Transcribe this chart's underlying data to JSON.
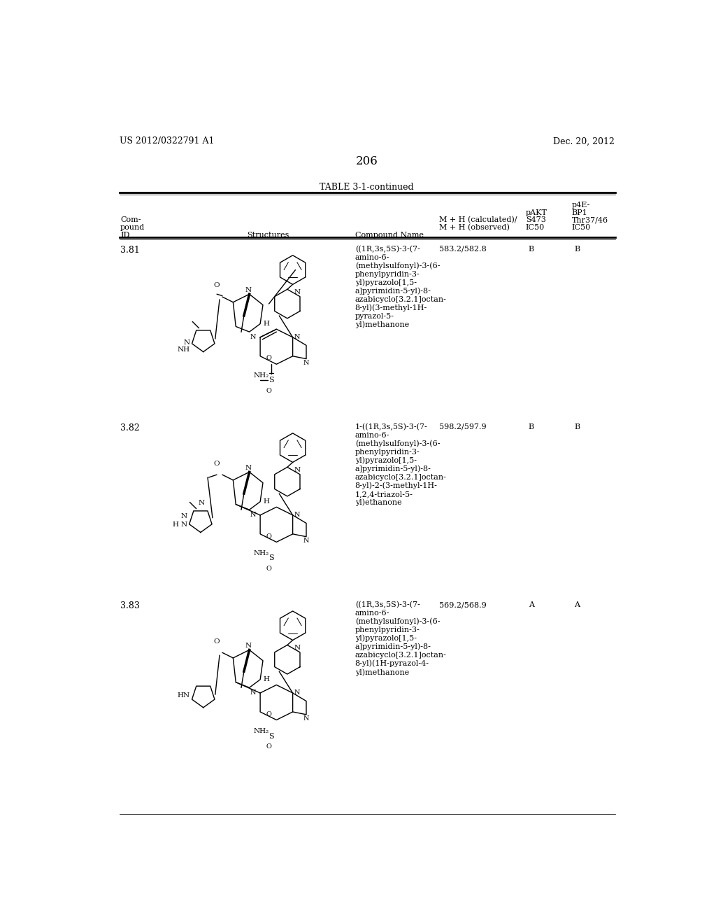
{
  "patent_number": "US 2012/0322791 A1",
  "date": "Dec. 20, 2012",
  "page_number": "206",
  "table_title": "TABLE 3-1-continued",
  "rows": [
    {
      "id": "3.81",
      "compound_name": "((1R,3s,5S)-3-(7-\namino-6-\n(methylsulfonyl)-3-(6-\nphenylpyridin-3-\nyl)pyrazolo[1,5-\na]pyrimidin-5-yl)-8-\nazabicyclo[3.2.1]octan-\n8-yl)(3-methyl-1H-\npyrazol-5-\nyl)methanone",
      "mh": "583.2/582.8",
      "pakt": "B",
      "p4e": "B"
    },
    {
      "id": "3.82",
      "compound_name": "1-((1R,3s,5S)-3-(7-\namino-6-\n(methylsulfonyl)-3-(6-\nphenylpyridin-3-\nyl)pyrazolo[1,5-\na]pyrimidin-5-yl)-8-\nazabicyclo[3.2.1]octan-\n8-yl)-2-(3-methyl-1H-\n1,2,4-triazol-5-\nyl)ethanone",
      "mh": "598.2/597.9",
      "pakt": "B",
      "p4e": "B"
    },
    {
      "id": "3.83",
      "compound_name": "((1R,3s,5S)-3-(7-\namino-6-\n(methylsulfonyl)-3-(6-\nphenylpyridin-3-\nyl)pyrazolo[1,5-\na]pyrimidin-5-yl)-8-\nazabicyclo[3.2.1]octan-\n8-yl)(1H-pyrazol-4-\nyl)methanone",
      "mh": "569.2/568.9",
      "pakt": "A",
      "p4e": "A"
    }
  ],
  "bg_color": "#ffffff",
  "text_color": "#000000"
}
